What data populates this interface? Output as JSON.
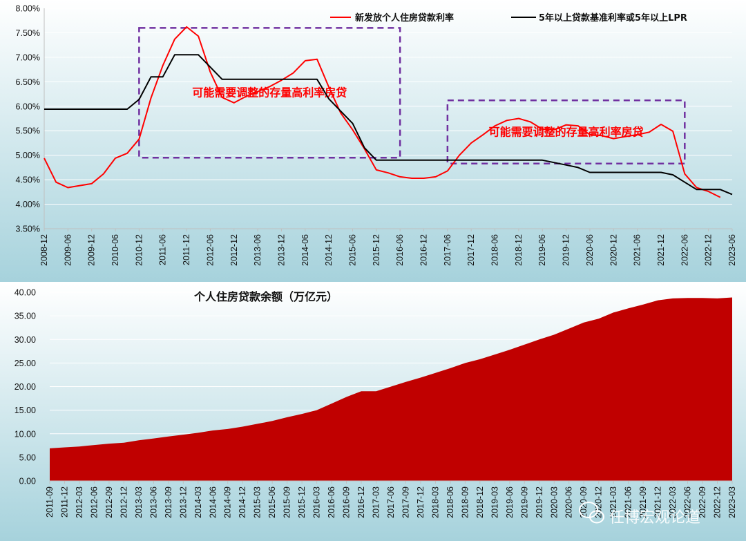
{
  "colors": {
    "background_top": "#ffffff",
    "background_bottom": "#a6d2dc",
    "red_line": "#ff0000",
    "black_line": "#000000",
    "annotation_box": "#7030a0",
    "annotation_text": "#ff0000",
    "area_fill": "#c00000",
    "grid": "#ffffff"
  },
  "watermark": {
    "text": "任博宏观论道",
    "icon": "wechat-icon"
  },
  "chart_data": [
    {
      "type": "line",
      "title": "",
      "xlabel": "",
      "ylabel": "",
      "ylim": [
        3.5,
        8.0
      ],
      "y_ticks": [
        "3.50%",
        "4.00%",
        "4.50%",
        "5.00%",
        "5.50%",
        "6.00%",
        "6.50%",
        "7.00%",
        "7.50%",
        "8.00%"
      ],
      "x_tick_labels": [
        "2008-12",
        "2009-06",
        "2009-12",
        "2010-06",
        "2010-12",
        "2011-06",
        "2011-12",
        "2012-06",
        "2012-12",
        "2013-06",
        "2013-12",
        "2014-06",
        "2014-12",
        "2015-06",
        "2015-12",
        "2016-06",
        "2016-12",
        "2017-06",
        "2017-12",
        "2018-06",
        "2018-12",
        "2019-06",
        "2019-12",
        "2020-06",
        "2020-12",
        "2021-06",
        "2021-12",
        "2022-06",
        "2022-12",
        "2023-06"
      ],
      "grid": true,
      "legend_position": "top-right",
      "series": [
        {
          "name": "新发放个人住房贷款利率",
          "color": "#ff0000",
          "x": [
            "2008-12",
            "2009-03",
            "2009-06",
            "2009-09",
            "2009-12",
            "2010-03",
            "2010-06",
            "2010-09",
            "2010-12",
            "2011-03",
            "2011-06",
            "2011-09",
            "2011-12",
            "2012-03",
            "2012-06",
            "2012-09",
            "2012-12",
            "2013-03",
            "2013-06",
            "2013-09",
            "2013-12",
            "2014-03",
            "2014-06",
            "2014-09",
            "2014-12",
            "2015-03",
            "2015-06",
            "2015-09",
            "2015-12",
            "2016-03",
            "2016-06",
            "2016-09",
            "2016-12",
            "2017-03",
            "2017-06",
            "2017-09",
            "2017-12",
            "2018-03",
            "2018-06",
            "2018-09",
            "2018-12",
            "2019-03",
            "2019-06",
            "2019-09",
            "2019-12",
            "2020-03",
            "2020-06",
            "2020-09",
            "2020-12",
            "2021-03",
            "2021-06",
            "2021-09",
            "2021-12",
            "2022-03",
            "2022-06",
            "2022-09",
            "2022-12",
            "2023-03"
          ],
          "values": [
            4.94,
            4.45,
            4.34,
            4.38,
            4.42,
            4.62,
            4.94,
            5.04,
            5.33,
            6.17,
            6.83,
            7.37,
            7.62,
            7.43,
            6.7,
            6.18,
            6.07,
            6.2,
            6.3,
            6.4,
            6.53,
            6.68,
            6.93,
            6.96,
            6.39,
            5.86,
            5.52,
            5.13,
            4.7,
            4.64,
            4.56,
            4.53,
            4.53,
            4.56,
            4.68,
            5.0,
            5.25,
            5.42,
            5.6,
            5.71,
            5.75,
            5.68,
            5.53,
            5.52,
            5.62,
            5.6,
            5.42,
            5.4,
            5.34,
            5.38,
            5.42,
            5.47,
            5.63,
            5.49,
            4.62,
            4.34,
            4.26,
            4.14
          ]
        },
        {
          "name": "5年以上贷款基准利率或5年以上LPR",
          "color": "#000000",
          "x": [
            "2008-12",
            "2009-03",
            "2009-06",
            "2009-09",
            "2009-12",
            "2010-03",
            "2010-06",
            "2010-09",
            "2010-12",
            "2011-03",
            "2011-06",
            "2011-09",
            "2011-12",
            "2012-03",
            "2012-06",
            "2012-09",
            "2012-12",
            "2013-03",
            "2013-06",
            "2013-09",
            "2013-12",
            "2014-03",
            "2014-06",
            "2014-09",
            "2014-12",
            "2015-03",
            "2015-06",
            "2015-09",
            "2015-12",
            "2016-03",
            "2016-06",
            "2016-09",
            "2016-12",
            "2017-03",
            "2017-06",
            "2017-09",
            "2017-12",
            "2018-03",
            "2018-06",
            "2018-09",
            "2018-12",
            "2019-03",
            "2019-06",
            "2019-09",
            "2019-12",
            "2020-03",
            "2020-06",
            "2020-09",
            "2020-12",
            "2021-03",
            "2021-06",
            "2021-09",
            "2021-12",
            "2022-03",
            "2022-06",
            "2022-09",
            "2022-12",
            "2023-03",
            "2023-06"
          ],
          "values": [
            5.94,
            5.94,
            5.94,
            5.94,
            5.94,
            5.94,
            5.94,
            5.94,
            6.14,
            6.6,
            6.6,
            7.05,
            7.05,
            7.05,
            6.8,
            6.55,
            6.55,
            6.55,
            6.55,
            6.55,
            6.55,
            6.55,
            6.55,
            6.55,
            6.15,
            5.9,
            5.65,
            5.15,
            4.9,
            4.9,
            4.9,
            4.9,
            4.9,
            4.9,
            4.9,
            4.9,
            4.9,
            4.9,
            4.9,
            4.9,
            4.9,
            4.9,
            4.9,
            4.85,
            4.8,
            4.75,
            4.65,
            4.65,
            4.65,
            4.65,
            4.65,
            4.65,
            4.65,
            4.6,
            4.45,
            4.3,
            4.3,
            4.3,
            4.2
          ]
        }
      ],
      "annotations": [
        {
          "text": "可能需要调整的存量高利率房贷",
          "box_x": [
            "2010-12",
            "2016-06"
          ],
          "box_y": [
            4.95,
            7.6
          ]
        },
        {
          "text": "可能需要调整的存量高利率房贷",
          "box_x": [
            "2017-06",
            "2022-06"
          ],
          "box_y": [
            4.83,
            6.12
          ]
        }
      ]
    },
    {
      "type": "area",
      "title": "个人住房贷款余额（万亿元）",
      "xlabel": "",
      "ylabel": "",
      "ylim": [
        0,
        40
      ],
      "y_ticks": [
        "0.00",
        "5.00",
        "10.00",
        "15.00",
        "20.00",
        "25.00",
        "30.00",
        "35.00",
        "40.00"
      ],
      "grid": true,
      "x": [
        "2011-09",
        "2011-12",
        "2012-03",
        "2012-06",
        "2012-09",
        "2012-12",
        "2013-03",
        "2013-06",
        "2013-09",
        "2013-12",
        "2014-03",
        "2014-06",
        "2014-09",
        "2014-12",
        "2015-03",
        "2015-06",
        "2015-09",
        "2015-12",
        "2016-03",
        "2016-06",
        "2016-09",
        "2016-12",
        "2017-03",
        "2017-06",
        "2017-09",
        "2017-12",
        "2018-03",
        "2018-06",
        "2018-09",
        "2018-12",
        "2019-03",
        "2019-06",
        "2019-09",
        "2019-12",
        "2020-03",
        "2020-06",
        "2020-09",
        "2020-12",
        "2021-03",
        "2021-06",
        "2021-09",
        "2021-12",
        "2022-03",
        "2022-06",
        "2022-09",
        "2022-12",
        "2023-03"
      ],
      "series": [
        {
          "name": "",
          "color": "#c00000",
          "values": [
            6.9,
            7.1,
            7.3,
            7.6,
            7.9,
            8.1,
            8.6,
            9.0,
            9.4,
            9.8,
            10.2,
            10.7,
            11.0,
            11.5,
            12.1,
            12.7,
            13.5,
            14.2,
            15.0,
            16.4,
            17.8,
            19.0,
            19.0,
            20.0,
            21.0,
            21.9,
            22.9,
            23.9,
            25.0,
            25.8,
            26.8,
            27.8,
            28.9,
            30.0,
            31.0,
            32.3,
            33.6,
            34.4,
            35.7,
            36.6,
            37.4,
            38.3,
            38.7,
            38.8,
            38.8,
            38.7,
            38.9
          ]
        }
      ]
    }
  ]
}
